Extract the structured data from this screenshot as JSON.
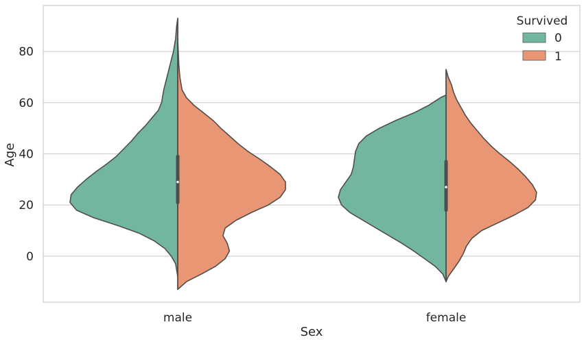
{
  "chart_data": {
    "type": "violin",
    "split": true,
    "title": "",
    "xlabel": "Sex",
    "ylabel": "Age",
    "categories": [
      "male",
      "female"
    ],
    "ylim": [
      -18,
      98
    ],
    "yticks": [
      "0",
      "20",
      "40",
      "60",
      "80"
    ],
    "ytick_values": [
      0,
      20,
      40,
      60,
      80
    ],
    "grid": "horizontal",
    "legend": {
      "title": "Survived",
      "placement": "top-right",
      "entries": [
        {
          "label": "0",
          "color": "#72b6a0"
        },
        {
          "label": "1",
          "color": "#e99675"
        }
      ]
    },
    "series": [
      {
        "name": "0",
        "color": "#72b6a0",
        "violins": [
          {
            "category": "male",
            "range": [
              -8,
              93
            ],
            "density": [
              [
                -8,
                0.0
              ],
              [
                -3,
                0.02
              ],
              [
                0,
                0.06
              ],
              [
                3,
                0.12
              ],
              [
                6,
                0.22
              ],
              [
                9,
                0.36
              ],
              [
                12,
                0.56
              ],
              [
                15,
                0.78
              ],
              [
                18,
                0.94
              ],
              [
                21,
                1.0
              ],
              [
                24,
                0.99
              ],
              [
                27,
                0.93
              ],
              [
                30,
                0.85
              ],
              [
                33,
                0.76
              ],
              [
                36,
                0.66
              ],
              [
                39,
                0.57
              ],
              [
                42,
                0.5
              ],
              [
                45,
                0.43
              ],
              [
                48,
                0.37
              ],
              [
                51,
                0.3
              ],
              [
                54,
                0.24
              ],
              [
                57,
                0.18
              ],
              [
                60,
                0.15
              ],
              [
                65,
                0.13
              ],
              [
                70,
                0.1
              ],
              [
                75,
                0.07
              ],
              [
                80,
                0.04
              ],
              [
                85,
                0.02
              ],
              [
                90,
                0.01
              ],
              [
                93,
                0.0
              ]
            ]
          },
          {
            "category": "female",
            "range": [
              -10,
              63
            ],
            "density": [
              [
                -10,
                0.0
              ],
              [
                -7,
                0.03
              ],
              [
                -4,
                0.1
              ],
              [
                -1,
                0.2
              ],
              [
                2,
                0.3
              ],
              [
                5,
                0.41
              ],
              [
                8,
                0.53
              ],
              [
                11,
                0.65
              ],
              [
                14,
                0.77
              ],
              [
                17,
                0.89
              ],
              [
                20,
                0.97
              ],
              [
                23,
                1.0
              ],
              [
                26,
                0.98
              ],
              [
                29,
                0.93
              ],
              [
                32,
                0.88
              ],
              [
                35,
                0.86
              ],
              [
                38,
                0.85
              ],
              [
                41,
                0.84
              ],
              [
                44,
                0.81
              ],
              [
                47,
                0.74
              ],
              [
                50,
                0.62
              ],
              [
                53,
                0.47
              ],
              [
                56,
                0.3
              ],
              [
                59,
                0.16
              ],
              [
                62,
                0.05
              ],
              [
                63,
                0.0
              ]
            ]
          }
        ]
      },
      {
        "name": "1",
        "color": "#e99675",
        "violins": [
          {
            "category": "male",
            "range": [
              -13,
              85
            ],
            "density": [
              [
                -13,
                0.0
              ],
              [
                -10,
                0.08
              ],
              [
                -7,
                0.22
              ],
              [
                -4,
                0.35
              ],
              [
                -1,
                0.44
              ],
              [
                2,
                0.48
              ],
              [
                5,
                0.46
              ],
              [
                8,
                0.42
              ],
              [
                11,
                0.44
              ],
              [
                14,
                0.54
              ],
              [
                17,
                0.68
              ],
              [
                20,
                0.84
              ],
              [
                23,
                0.95
              ],
              [
                26,
                1.0
              ],
              [
                29,
                1.0
              ],
              [
                32,
                0.95
              ],
              [
                35,
                0.86
              ],
              [
                38,
                0.76
              ],
              [
                41,
                0.65
              ],
              [
                44,
                0.56
              ],
              [
                47,
                0.48
              ],
              [
                50,
                0.4
              ],
              [
                53,
                0.33
              ],
              [
                56,
                0.24
              ],
              [
                59,
                0.15
              ],
              [
                62,
                0.08
              ],
              [
                65,
                0.04
              ],
              [
                70,
                0.02
              ],
              [
                75,
                0.01
              ],
              [
                80,
                0.005
              ],
              [
                85,
                0.0
              ]
            ]
          },
          {
            "category": "female",
            "range": [
              -10,
              73
            ],
            "density": [
              [
                -10,
                0.0
              ],
              [
                -8,
                0.02
              ],
              [
                -5,
                0.07
              ],
              [
                -2,
                0.12
              ],
              [
                1,
                0.16
              ],
              [
                4,
                0.19
              ],
              [
                7,
                0.24
              ],
              [
                10,
                0.33
              ],
              [
                13,
                0.48
              ],
              [
                16,
                0.63
              ],
              [
                19,
                0.76
              ],
              [
                22,
                0.83
              ],
              [
                25,
                0.84
              ],
              [
                28,
                0.8
              ],
              [
                31,
                0.74
              ],
              [
                34,
                0.67
              ],
              [
                37,
                0.59
              ],
              [
                40,
                0.5
              ],
              [
                43,
                0.42
              ],
              [
                46,
                0.35
              ],
              [
                49,
                0.29
              ],
              [
                52,
                0.23
              ],
              [
                55,
                0.18
              ],
              [
                58,
                0.14
              ],
              [
                61,
                0.1
              ],
              [
                64,
                0.07
              ],
              [
                67,
                0.05
              ],
              [
                70,
                0.02
              ],
              [
                73,
                0.0
              ]
            ]
          }
        ]
      }
    ],
    "inner_box": [
      {
        "category": "male",
        "q1": 21,
        "median": 29,
        "q3": 39
      },
      {
        "category": "female",
        "q1": 18,
        "median": 27,
        "q3": 37
      }
    ]
  }
}
